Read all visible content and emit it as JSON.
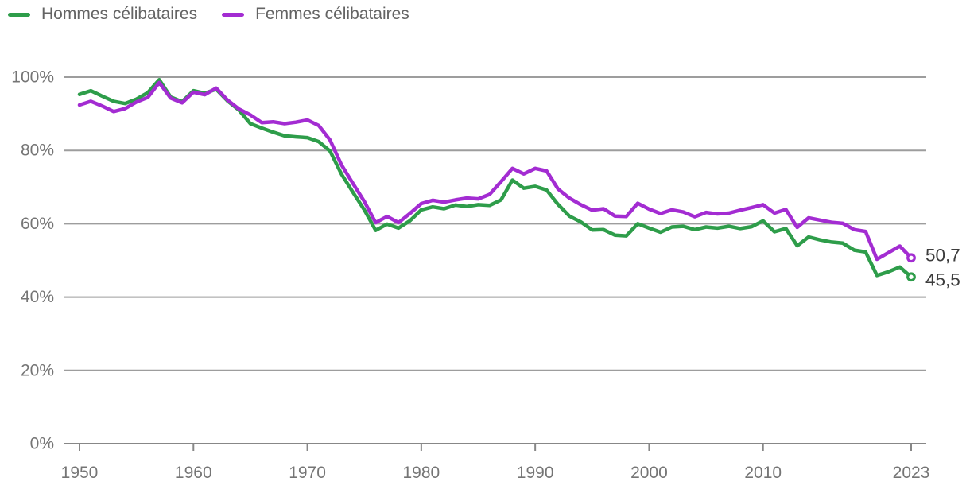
{
  "legend": {
    "items": [
      {
        "label": "Hommes célibataires",
        "color": "#2e9d4a"
      },
      {
        "label": "Femmes célibataires",
        "color": "#a32cd2"
      }
    ]
  },
  "colors": {
    "background": "#ffffff",
    "grid": "#9d9d9d",
    "axis": "#878787",
    "axis_text": "#757575",
    "legend_text": "#646464",
    "value_label_text": "#3d3d3d",
    "series_green": "#2e9d4a",
    "series_purple": "#a32cd2"
  },
  "chart_data": {
    "type": "line",
    "title": "",
    "xlabel": "",
    "ylabel": "",
    "grid": true,
    "legend_position": "top-left",
    "ylim": [
      0,
      100
    ],
    "ytick_values": [
      0,
      20,
      40,
      60,
      80,
      100
    ],
    "ytick_labels": [
      "0%",
      "20%",
      "40%",
      "60%",
      "80%",
      "100%"
    ],
    "xtick_values": [
      1950,
      1960,
      1970,
      1980,
      1990,
      2000,
      2010,
      2023
    ],
    "xtick_labels": [
      "1950",
      "1960",
      "1970",
      "1980",
      "1990",
      "2000",
      "2010",
      "2023"
    ],
    "x": [
      1950,
      1951,
      1952,
      1953,
      1954,
      1955,
      1956,
      1957,
      1958,
      1959,
      1960,
      1961,
      1962,
      1963,
      1964,
      1965,
      1966,
      1967,
      1968,
      1969,
      1970,
      1971,
      1972,
      1973,
      1974,
      1975,
      1976,
      1977,
      1978,
      1979,
      1980,
      1981,
      1982,
      1983,
      1984,
      1985,
      1986,
      1987,
      1988,
      1989,
      1990,
      1991,
      1992,
      1993,
      1994,
      1995,
      1996,
      1997,
      1998,
      1999,
      2000,
      2001,
      2002,
      2003,
      2004,
      2005,
      2006,
      2007,
      2008,
      2009,
      2010,
      2011,
      2012,
      2013,
      2014,
      2015,
      2016,
      2017,
      2018,
      2019,
      2020,
      2021,
      2022,
      2023
    ],
    "series": [
      {
        "name": "Hommes célibataires",
        "color": "#2e9d4a",
        "end_label": "45,5",
        "end_value": 45.5,
        "values": [
          95.3,
          96.3,
          94.8,
          93.4,
          92.8,
          94.0,
          95.8,
          99.3,
          94.6,
          93.3,
          96.3,
          95.6,
          96.7,
          93.5,
          91.0,
          87.3,
          86.1,
          85.0,
          84.0,
          83.7,
          83.5,
          82.4,
          79.8,
          73.5,
          68.6,
          63.8,
          58.2,
          59.9,
          58.8,
          60.8,
          63.8,
          64.6,
          64.1,
          65.1,
          64.7,
          65.2,
          65.0,
          66.5,
          71.9,
          69.7,
          70.2,
          69.2,
          65.3,
          62.1,
          60.5,
          58.3,
          58.4,
          56.9,
          56.7,
          60.0,
          58.8,
          57.7,
          59.1,
          59.3,
          58.4,
          59.1,
          58.8,
          59.3,
          58.7,
          59.2,
          60.8,
          57.8,
          58.7,
          54.0,
          56.4,
          55.6,
          55.0,
          54.7,
          52.8,
          52.3,
          45.9,
          46.9,
          48.2,
          45.5
        ]
      },
      {
        "name": "Femmes célibataires",
        "color": "#a32cd2",
        "end_label": "50,7",
        "end_value": 50.7,
        "values": [
          92.4,
          93.4,
          92.1,
          90.6,
          91.4,
          93.2,
          94.5,
          98.5,
          94.3,
          93.0,
          95.9,
          95.2,
          97.0,
          93.7,
          91.3,
          89.7,
          87.6,
          87.8,
          87.3,
          87.7,
          88.3,
          86.8,
          82.8,
          76.0,
          71.0,
          66.1,
          60.3,
          62.0,
          60.3,
          62.8,
          65.5,
          66.4,
          65.9,
          66.5,
          67.0,
          66.8,
          68.0,
          71.5,
          75.1,
          73.6,
          75.1,
          74.4,
          69.5,
          67.0,
          65.2,
          63.7,
          64.1,
          62.1,
          62.0,
          65.6,
          64.0,
          62.8,
          63.8,
          63.2,
          61.9,
          63.1,
          62.7,
          62.9,
          63.7,
          64.4,
          65.2,
          62.9,
          63.9,
          59.0,
          61.6,
          61.0,
          60.4,
          60.1,
          58.4,
          57.9,
          50.3,
          52.1,
          53.9,
          50.7
        ]
      }
    ]
  }
}
